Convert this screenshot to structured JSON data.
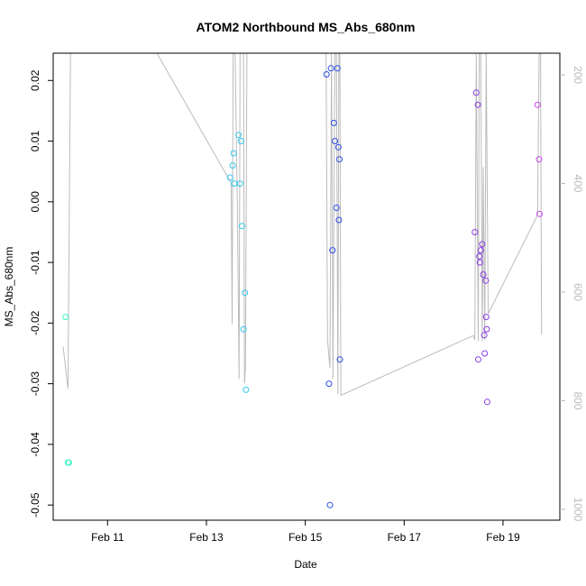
{
  "chart_data": {
    "type": "scatter",
    "title": "ATOM2 Northbound MS_Abs_680nm",
    "xlabel": "Date",
    "ylabel": "MS_Abs_680nm",
    "x_ticks": [
      "Feb 11",
      "Feb 13",
      "Feb 15",
      "Feb 17",
      "Feb 19"
    ],
    "x_tick_values": [
      11,
      13,
      15,
      17,
      19
    ],
    "xlim": [
      9.9,
      20.15
    ],
    "ylim": [
      -0.0525,
      0.0245
    ],
    "y_ticks": [
      0.02,
      0.01,
      0.0,
      -0.01,
      -0.02,
      -0.03,
      -0.04,
      -0.05
    ],
    "y_tick_labels": [
      "0.02",
      "0.01",
      "0.00",
      "-0.01",
      "-0.02",
      "-0.03",
      "-0.04",
      "-0.05"
    ],
    "y2_ticks": [
      200,
      400,
      600,
      800,
      1000
    ],
    "y2_tick_labels": [
      "200",
      "400",
      "600",
      "800",
      "1000"
    ],
    "y2lim": [
      1020,
      160
    ],
    "grid": false,
    "legend": false,
    "colors": {
      "series_a": "#3cf5c8",
      "series_b": "#33c8ee",
      "series_c": "#2e4de6",
      "series_d": "#8a3ce6",
      "series_e": "#cc44ee",
      "secondary_line": "#bbbbbb"
    },
    "series": [
      {
        "color_key": "series_a",
        "points": [
          [
            10.15,
            -0.019
          ],
          [
            10.2,
            -0.043
          ],
          [
            10.22,
            -0.043
          ]
        ]
      },
      {
        "color_key": "series_b",
        "points": [
          [
            13.48,
            0.004
          ],
          [
            13.53,
            0.006
          ],
          [
            13.55,
            0.008
          ],
          [
            13.56,
            0.003
          ],
          [
            13.65,
            0.011
          ],
          [
            13.68,
            0.003
          ],
          [
            13.7,
            0.01
          ],
          [
            13.72,
            -0.004
          ],
          [
            13.75,
            -0.021
          ],
          [
            13.78,
            -0.015
          ],
          [
            13.8,
            -0.031
          ]
        ]
      },
      {
        "color_key": "series_c",
        "points": [
          [
            15.43,
            0.021
          ],
          [
            15.48,
            -0.03
          ],
          [
            15.5,
            -0.05
          ],
          [
            15.52,
            0.022
          ],
          [
            15.55,
            -0.008
          ],
          [
            15.58,
            0.013
          ],
          [
            15.6,
            0.01
          ],
          [
            15.63,
            -0.001
          ],
          [
            15.65,
            0.022
          ],
          [
            15.67,
            0.009
          ],
          [
            15.68,
            -0.003
          ],
          [
            15.69,
            0.007
          ],
          [
            15.7,
            -0.026
          ]
        ]
      },
      {
        "color_key": "series_d",
        "points": [
          [
            18.43,
            -0.005
          ],
          [
            18.46,
            0.018
          ],
          [
            18.49,
            0.016
          ],
          [
            18.5,
            -0.026
          ],
          [
            18.52,
            -0.009
          ],
          [
            18.53,
            -0.01
          ],
          [
            18.55,
            -0.008
          ],
          [
            18.58,
            -0.007
          ],
          [
            18.6,
            -0.012
          ],
          [
            18.62,
            -0.022
          ],
          [
            18.63,
            -0.025
          ],
          [
            18.65,
            -0.013
          ],
          [
            18.66,
            -0.019
          ],
          [
            18.67,
            -0.021
          ],
          [
            18.68,
            -0.033
          ]
        ]
      },
      {
        "color_key": "series_e",
        "points": [
          [
            19.7,
            0.016
          ],
          [
            19.73,
            0.007
          ],
          [
            19.74,
            -0.002
          ]
        ]
      }
    ],
    "secondary_line": {
      "axis": "y2",
      "points": [
        [
          10.1,
          700
        ],
        [
          10.2,
          778
        ],
        [
          10.25,
          160
        ],
        [
          10.3,
          160
        ],
        [
          10.4,
          160
        ],
        [
          12.0,
          160
        ],
        [
          13.43,
          388
        ],
        [
          13.5,
          398
        ],
        [
          13.52,
          658
        ],
        [
          13.54,
          160
        ],
        [
          13.56,
          160
        ],
        [
          13.58,
          160
        ],
        [
          13.63,
          468
        ],
        [
          13.66,
          760
        ],
        [
          13.68,
          160
        ],
        [
          13.7,
          160
        ],
        [
          13.75,
          160
        ],
        [
          13.77,
          768
        ],
        [
          13.79,
          738
        ],
        [
          13.82,
          160
        ],
        [
          13.85,
          160
        ],
        [
          15.38,
          160
        ],
        [
          15.42,
          160
        ],
        [
          15.45,
          688
        ],
        [
          15.5,
          740
        ],
        [
          15.53,
          160
        ],
        [
          15.56,
          760
        ],
        [
          15.6,
          160
        ],
        [
          15.63,
          160
        ],
        [
          15.66,
          788
        ],
        [
          15.68,
          160
        ],
        [
          15.7,
          160
        ],
        [
          15.72,
          790
        ],
        [
          18.4,
          680
        ],
        [
          18.43,
          688
        ],
        [
          18.46,
          160
        ],
        [
          18.5,
          690
        ],
        [
          18.52,
          160
        ],
        [
          18.55,
          160
        ],
        [
          18.58,
          690
        ],
        [
          18.6,
          370
        ],
        [
          18.63,
          688
        ],
        [
          18.66,
          160
        ],
        [
          18.7,
          640
        ],
        [
          19.7,
          458
        ],
        [
          19.73,
          160
        ],
        [
          19.76,
          160
        ],
        [
          19.78,
          678
        ]
      ]
    }
  }
}
